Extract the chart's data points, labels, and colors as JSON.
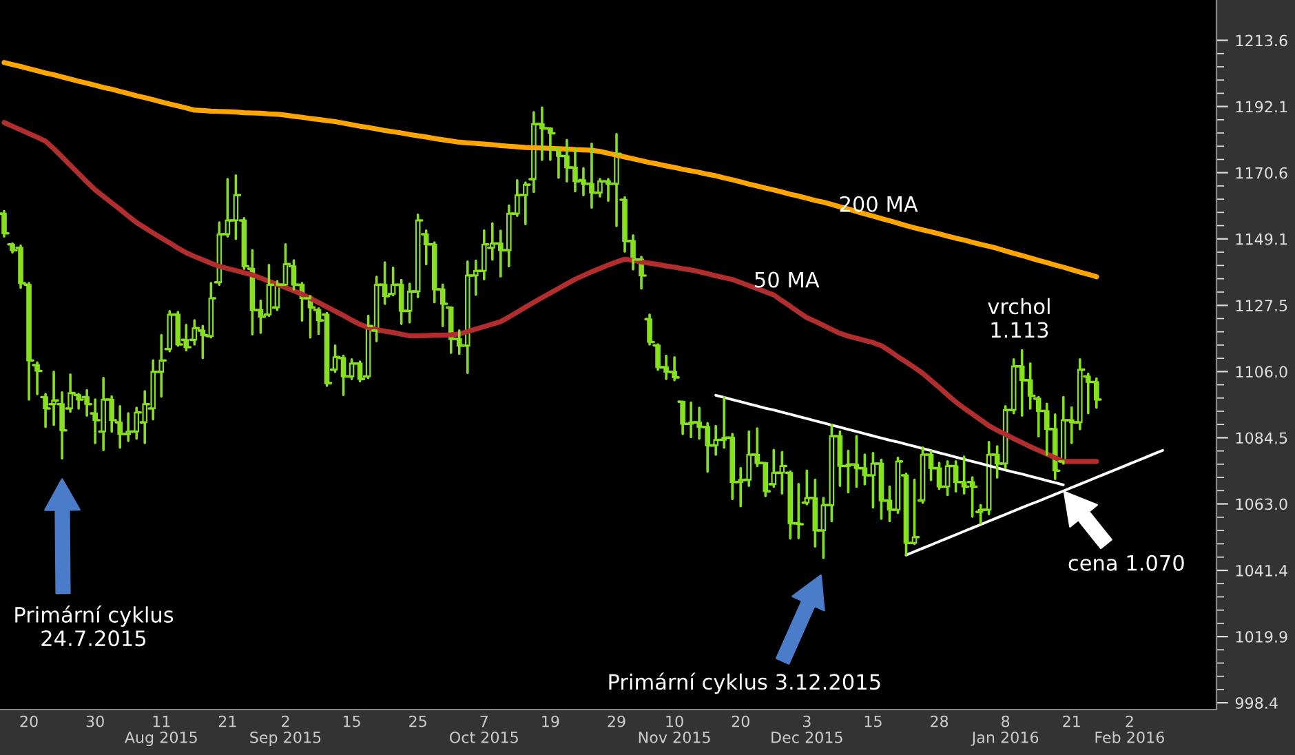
{
  "chart_data": {
    "type": "candlestick",
    "color": "#86e01e",
    "categories": [
      null,
      null,
      null,
      "20",
      null,
      null,
      null,
      null,
      null,
      null,
      null,
      "30",
      null,
      null,
      null,
      null,
      null,
      null,
      null,
      "11\nAug 2015",
      null,
      null,
      null,
      null,
      null,
      null,
      null,
      "21",
      null,
      null,
      null,
      null,
      null,
      null,
      "2\nSep 2015",
      null,
      null,
      null,
      null,
      null,
      null,
      null,
      "15",
      null,
      null,
      null,
      null,
      null,
      null,
      null,
      "25",
      null,
      null,
      null,
      null,
      null,
      null,
      null,
      "7\nOct 2015",
      null,
      null,
      null,
      null,
      null,
      null,
      null,
      "19",
      null,
      null,
      null,
      null,
      null,
      null,
      null,
      "29",
      null,
      null,
      null,
      null,
      null,
      null,
      "10\nNov 2015",
      null,
      null,
      null,
      null,
      null,
      null,
      null,
      "20",
      null,
      null,
      null,
      null,
      null,
      null,
      null,
      "3\nDec 2015",
      null,
      null,
      null,
      null,
      null,
      null,
      null,
      "15",
      null,
      null,
      null,
      null,
      null,
      null,
      null,
      "28",
      null,
      null,
      null,
      null,
      null,
      null,
      null,
      "8\nJan 2016",
      null,
      null,
      null,
      null,
      null,
      null,
      null,
      "21",
      null,
      null,
      null,
      null,
      null,
      null,
      "2\nFeb 2016",
      null,
      null,
      null,
      null,
      null,
      null,
      null,
      null,
      null,
      null
    ],
    "ohlc": [
      [
        1157.3,
        1158.1,
        1149.9,
        1150.9
      ],
      [
        1147.3,
        1147.6,
        1144.7,
        1145.4
      ],
      [
        1146.2,
        1146.9,
        1133.2,
        1134.7
      ],
      [
        1134.2,
        1134.7,
        1096.9,
        1109.6
      ],
      [
        1108.1,
        1108.9,
        1098.7,
        1106.2
      ],
      [
        1097.7,
        1098.7,
        1088.0,
        1094.0
      ],
      [
        1095.4,
        1105.9,
        1088.7,
        1096.6
      ],
      [
        1095.4,
        1099.2,
        1077.8,
        1086.9
      ],
      [
        1094.0,
        1105.0,
        1093.0,
        1099.0
      ],
      [
        1098.4,
        1098.7,
        1094.0,
        1096.9
      ],
      [
        1097.7,
        1099.9,
        1091.7,
        1095.4
      ],
      [
        1092.4,
        1096.9,
        1082.8,
        1090.2
      ],
      [
        1086.5,
        1103.9,
        1080.5,
        1096.9
      ],
      [
        1096.9,
        1097.9,
        1086.5,
        1090.2
      ],
      [
        1089.5,
        1094.7,
        1081.3,
        1085.7
      ],
      [
        1085.7,
        1092.4,
        1083.5,
        1086.5
      ],
      [
        1086.5,
        1094.2,
        1084.2,
        1092.7
      ],
      [
        1089.5,
        1099.6,
        1082.8,
        1095.4
      ],
      [
        1094.0,
        1109.6,
        1090.5,
        1105.9
      ],
      [
        1105.9,
        1117.8,
        1097.9,
        1109.6
      ],
      [
        1113.3,
        1125.6,
        1112.6,
        1124.5
      ],
      [
        1124.5,
        1125.3,
        1114.4,
        1114.8
      ],
      [
        1116.3,
        1121.1,
        1112.9,
        1113.9
      ],
      [
        1116.3,
        1122.6,
        1114.8,
        1120.1
      ],
      [
        1119.3,
        1120.8,
        1110.4,
        1117.8
      ],
      [
        1117.5,
        1134.7,
        1117.1,
        1129.8
      ],
      [
        1135.0,
        1154.4,
        1134.2,
        1150.6
      ],
      [
        1150.6,
        1168.5,
        1149.9,
        1155.1
      ],
      [
        1155.1,
        1169.7,
        1149.1,
        1163.3
      ],
      [
        1155.1,
        1155.8,
        1139.4,
        1140.2
      ],
      [
        1139.4,
        1145.4,
        1118.1,
        1126.0
      ],
      [
        1126.0,
        1129.0,
        1118.6,
        1123.8
      ],
      [
        1124.5,
        1140.6,
        1124.1,
        1134.2
      ],
      [
        1126.8,
        1135.3,
        1126.0,
        1134.2
      ],
      [
        1134.2,
        1147.3,
        1134.2,
        1140.9
      ],
      [
        1140.2,
        1142.1,
        1132.7,
        1134.2
      ],
      [
        1134.2,
        1134.7,
        1122.6,
        1129.8
      ],
      [
        1129.8,
        1130.5,
        1117.1,
        1126.8
      ],
      [
        1126.0,
        1126.5,
        1118.3,
        1122.6
      ],
      [
        1124.5,
        1125.0,
        1101.4,
        1102.2
      ],
      [
        1106.6,
        1114.4,
        1105.9,
        1110.7
      ],
      [
        1110.4,
        1111.1,
        1098.4,
        1104.4
      ],
      [
        1104.4,
        1109.9,
        1103.6,
        1108.6
      ],
      [
        1108.6,
        1109.2,
        1102.9,
        1103.6
      ],
      [
        1104.4,
        1124.1,
        1103.9,
        1120.8
      ],
      [
        1119.3,
        1136.8,
        1115.9,
        1134.2
      ],
      [
        1134.2,
        1141.4,
        1128.0,
        1130.5
      ],
      [
        1131.2,
        1139.7,
        1130.8,
        1134.2
      ],
      [
        1134.2,
        1135.7,
        1121.5,
        1125.7
      ],
      [
        1125.7,
        1134.5,
        1122.0,
        1132.0
      ],
      [
        1132.0,
        1156.9,
        1130.2,
        1155.1
      ],
      [
        1150.6,
        1151.8,
        1140.9,
        1147.3
      ],
      [
        1147.3,
        1147.9,
        1128.5,
        1132.7
      ],
      [
        1132.7,
        1134.2,
        1120.8,
        1128.0
      ],
      [
        1126.8,
        1126.8,
        1112.1,
        1116.6
      ],
      [
        1116.6,
        1119.3,
        1111.8,
        1114.4
      ],
      [
        1114.4,
        1141.7,
        1105.6,
        1137.2
      ],
      [
        1137.2,
        1142.0,
        1131.0,
        1138.7
      ],
      [
        1138.7,
        1151.8,
        1136.0,
        1147.3
      ],
      [
        1146.2,
        1154.1,
        1142.4,
        1147.6
      ],
      [
        1147.6,
        1151.7,
        1136.9,
        1145.4
      ],
      [
        1145.4,
        1159.9,
        1140.2,
        1157.3
      ],
      [
        1157.3,
        1168.1,
        1156.6,
        1163.3
      ],
      [
        1163.3,
        1167.4,
        1153.9,
        1166.7
      ],
      [
        1168.5,
        1190.2,
        1164.4,
        1186.4
      ],
      [
        1186.4,
        1191.7,
        1174.8,
        1185.0
      ],
      [
        1185.0,
        1185.0,
        1174.8,
        1183.4
      ],
      [
        1178.2,
        1178.5,
        1169.0,
        1176.0
      ],
      [
        1176.0,
        1181.2,
        1167.8,
        1172.3
      ],
      [
        1172.3,
        1178.5,
        1164.6,
        1167.8
      ],
      [
        1168.2,
        1172.0,
        1163.3,
        1167.0
      ],
      [
        1167.0,
        1180.0,
        1159.3,
        1164.1
      ],
      [
        1164.1,
        1168.5,
        1162.9,
        1167.8
      ],
      [
        1167.8,
        1168.5,
        1161.5,
        1167.0
      ],
      [
        1167.0,
        1183.1,
        1153.3,
        1176.7
      ],
      [
        1161.8,
        1162.6,
        1145.0,
        1148.4
      ],
      [
        1148.4,
        1150.2,
        1139.2,
        1142.4
      ],
      [
        1142.4,
        1143.2,
        1133.0,
        1137.2
      ],
      [
        1123.0,
        1124.5,
        1114.8,
        1115.6
      ],
      [
        1114.5,
        1114.8,
        1106.6,
        1107.4
      ],
      [
        1107.4,
        1111.1,
        1103.6,
        1105.9
      ],
      [
        1105.9,
        1110.6,
        1103.2,
        1104.1
      ],
      [
        1096.2,
        1096.2,
        1085.7,
        1089.0
      ],
      [
        1089.0,
        1095.9,
        1084.7,
        1089.5
      ],
      [
        1089.5,
        1094.2,
        1084.2,
        1088.0
      ],
      [
        1088.0,
        1089.2,
        1073.5,
        1082.0
      ],
      [
        1082.0,
        1088.3,
        1079.0,
        1083.8
      ],
      [
        1083.8,
        1097.7,
        1081.3,
        1084.5
      ],
      [
        1084.5,
        1085.7,
        1064.6,
        1070.1
      ],
      [
        1070.1,
        1074.6,
        1062.3,
        1070.8
      ],
      [
        1070.8,
        1086.5,
        1068.9,
        1079.0
      ],
      [
        1079.0,
        1087.5,
        1075.3,
        1076.3
      ],
      [
        1076.3,
        1076.3,
        1065.6,
        1067.1
      ],
      [
        1069.4,
        1080.5,
        1068.6,
        1073.1
      ],
      [
        1073.1,
        1079.8,
        1066.4,
        1075.3
      ],
      [
        1073.1,
        1073.5,
        1051.8,
        1056.7
      ],
      [
        1056.7,
        1069.4,
        1051.9,
        1056.4
      ],
      [
        1063.4,
        1073.8,
        1062.9,
        1064.9
      ],
      [
        1064.9,
        1070.8,
        1049.2,
        1054.4
      ],
      [
        1054.4,
        1064.9,
        1045.5,
        1062.6
      ],
      [
        1062.6,
        1088.7,
        1057.4,
        1085.0
      ],
      [
        1085.0,
        1086.5,
        1068.9,
        1075.3
      ],
      [
        1075.3,
        1080.2,
        1066.8,
        1075.8
      ],
      [
        1075.8,
        1085.0,
        1068.6,
        1074.6
      ],
      [
        1074.6,
        1079.0,
        1069.4,
        1072.3
      ],
      [
        1072.3,
        1079.5,
        1061.9,
        1076.1
      ],
      [
        1076.1,
        1077.3,
        1058.2,
        1064.1
      ],
      [
        1064.1,
        1068.6,
        1057.4,
        1061.1
      ],
      [
        1061.1,
        1078.0,
        1060.1,
        1076.8
      ],
      [
        1072.3,
        1072.8,
        1046.5,
        1050.3
      ],
      [
        1050.3,
        1070.8,
        1050.0,
        1052.2
      ],
      [
        1064.1,
        1081.3,
        1063.4,
        1079.0
      ],
      [
        1079.0,
        1080.1,
        1070.8,
        1074.6
      ],
      [
        1074.6,
        1076.3,
        1067.9,
        1068.6
      ],
      [
        1068.6,
        1076.8,
        1065.9,
        1075.3
      ],
      [
        1075.3,
        1076.8,
        1067.1,
        1070.1
      ],
      [
        1070.1,
        1078.3,
        1066.4,
        1068.6
      ],
      [
        1070.1,
        1071.6,
        1058.9,
        1068.6
      ],
      [
        1060.4,
        1062.6,
        1056.7,
        1061.1
      ],
      [
        1061.1,
        1083.1,
        1059.7,
        1079.0
      ],
      [
        1079.0,
        1081.7,
        1071.6,
        1076.1
      ],
      [
        1076.1,
        1094.7,
        1074.6,
        1093.5
      ],
      [
        1093.5,
        1109.9,
        1092.5,
        1107.7
      ],
      [
        1107.7,
        1112.9,
        1091.7,
        1103.2
      ],
      [
        1103.2,
        1108.6,
        1094.0,
        1098.1
      ],
      [
        1097.2,
        1097.7,
        1085.0,
        1093.2
      ],
      [
        1093.2,
        1095.5,
        1079.0,
        1087.3
      ],
      [
        1087.3,
        1092.0,
        1071.1,
        1073.8
      ],
      [
        1076.8,
        1097.7,
        1076.1,
        1090.2
      ],
      [
        1090.2,
        1094.3,
        1082.8,
        1089.5
      ],
      [
        1089.5,
        1109.9,
        1087.3,
        1106.6
      ],
      [
        1104.4,
        1105.2,
        1092.5,
        1102.6
      ],
      [
        1102.6,
        1103.7,
        1094.3,
        1096.9
      ],
      null,
      null,
      null,
      null,
      null,
      null,
      null,
      null,
      null,
      null,
      null,
      null,
      null,
      null
    ],
    "series": [
      {
        "name": "200 MA",
        "type": "line",
        "color": "#ffa500",
        "values": [
          1206.4,
          1205.7,
          1205.1,
          1204.4,
          1203.7,
          1203.0,
          1202.4,
          1201.7,
          1201.0,
          1200.3,
          1199.7,
          1199.0,
          1198.3,
          1197.7,
          1197.0,
          1196.3,
          1195.6,
          1195.0,
          1194.3,
          1193.6,
          1192.9,
          1192.3,
          1191.6,
          1190.9,
          1190.8,
          1190.6,
          1190.5,
          1190.4,
          1190.3,
          1190.1,
          1190.0,
          1189.9,
          1189.7,
          1189.6,
          1189.3,
          1188.9,
          1188.6,
          1188.2,
          1187.9,
          1187.5,
          1187.2,
          1186.7,
          1186.2,
          1185.7,
          1185.3,
          1184.8,
          1184.3,
          1183.9,
          1183.5,
          1183.0,
          1182.6,
          1182.2,
          1181.7,
          1181.3,
          1180.9,
          1180.5,
          1180.3,
          1180.1,
          1179.9,
          1179.7,
          1179.4,
          1179.2,
          1179.0,
          1178.8,
          1178.7,
          1178.6,
          1178.5,
          1178.4,
          1178.3,
          1178.1,
          1178.0,
          1177.9,
          1177.5,
          1176.9,
          1176.3,
          1175.7,
          1175.1,
          1174.5,
          1173.9,
          1173.4,
          1172.8,
          1172.3,
          1171.7,
          1171.2,
          1170.7,
          1170.1,
          1169.6,
          1168.9,
          1168.3,
          1167.6,
          1166.9,
          1166.3,
          1165.6,
          1165.0,
          1164.3,
          1163.6,
          1163.0,
          1162.3,
          1161.6,
          1161.0,
          1160.3,
          1159.5,
          1158.8,
          1158.0,
          1157.2,
          1156.5,
          1155.7,
          1155.0,
          1154.2,
          1153.4,
          1152.7,
          1152.0,
          1151.4,
          1150.7,
          1150.0,
          1149.3,
          1148.7,
          1148.0,
          1147.3,
          1146.7,
          1146.0,
          1145.2,
          1144.4,
          1143.7,
          1142.9,
          1142.1,
          1141.4,
          1140.6,
          1139.9,
          1139.1,
          1138.3,
          1137.6,
          1136.8,
          null,
          null,
          null,
          null,
          null,
          null,
          null,
          null,
          null,
          null,
          null,
          null,
          null,
          null
        ]
      },
      {
        "name": "50 MA",
        "type": "line",
        "color": "#b22d2d",
        "values": [
          1186.9,
          1185.7,
          1184.5,
          1183.3,
          1182.1,
          1180.8,
          1178.4,
          1175.7,
          1173.0,
          1170.3,
          1167.6,
          1165.0,
          1162.9,
          1160.8,
          1158.7,
          1156.5,
          1154.4,
          1152.7,
          1151.0,
          1149.4,
          1147.8,
          1146.1,
          1144.6,
          1143.4,
          1142.3,
          1141.2,
          1140.2,
          1139.5,
          1138.8,
          1138.1,
          1137.4,
          1136.4,
          1135.3,
          1134.3,
          1133.3,
          1132.2,
          1131.1,
          1129.8,
          1128.4,
          1127.0,
          1125.6,
          1124.2,
          1122.7,
          1121.3,
          1120.3,
          1119.6,
          1119.1,
          1118.7,
          1118.1,
          1117.6,
          1117.6,
          1117.7,
          1117.8,
          1117.8,
          1117.9,
          1118.2,
          1119.0,
          1119.8,
          1120.6,
          1121.4,
          1122.2,
          1123.7,
          1125.3,
          1126.9,
          1128.5,
          1130.0,
          1131.5,
          1133.0,
          1134.5,
          1136.0,
          1137.2,
          1138.4,
          1139.5,
          1140.6,
          1141.6,
          1142.5,
          1142.1,
          1141.6,
          1141.2,
          1140.8,
          1140.3,
          1139.9,
          1139.4,
          1139.0,
          1138.4,
          1137.8,
          1137.1,
          1136.5,
          1135.9,
          1134.9,
          1133.9,
          1132.9,
          1131.9,
          1130.9,
          1129.0,
          1127.2,
          1125.3,
          1123.5,
          1122.3,
          1121.0,
          1119.7,
          1118.4,
          1117.5,
          1116.8,
          1116.1,
          1115.4,
          1114.4,
          1112.7,
          1110.8,
          1109.1,
          1107.3,
          1105.4,
          1103.1,
          1100.8,
          1098.4,
          1096.1,
          1094.1,
          1092.2,
          1090.3,
          1088.4,
          1086.9,
          1085.6,
          1084.2,
          1082.9,
          1081.6,
          1080.4,
          1079.2,
          1078.0,
          1076.8,
          1076.8,
          1076.8,
          1076.8,
          1076.8,
          null,
          null,
          null,
          null,
          null,
          null,
          null,
          null,
          null,
          null,
          null,
          null,
          null,
          null
        ]
      },
      {
        "type": "line",
        "color": "#ffffff",
        "values": [
          null,
          null,
          null,
          null,
          null,
          null,
          null,
          null,
          null,
          null,
          null,
          null,
          null,
          null,
          null,
          null,
          null,
          null,
          null,
          null,
          null,
          null,
          null,
          null,
          null,
          null,
          null,
          null,
          null,
          null,
          null,
          null,
          null,
          null,
          null,
          null,
          null,
          null,
          null,
          null,
          null,
          null,
          null,
          null,
          null,
          null,
          null,
          null,
          null,
          null,
          null,
          null,
          null,
          null,
          null,
          null,
          null,
          null,
          null,
          null,
          null,
          null,
          null,
          null,
          null,
          null,
          null,
          null,
          null,
          null,
          null,
          null,
          null,
          null,
          null,
          null,
          null,
          null,
          null,
          null,
          null,
          null,
          null,
          null,
          null,
          null,
          1098.3,
          1097.6,
          1096.9,
          1096.2,
          1095.5,
          1094.8,
          1094.1,
          1093.5,
          1092.8,
          1092.1,
          1091.4,
          1090.7,
          1090.0,
          1089.3,
          1088.6,
          1087.9,
          1087.2,
          1086.5,
          1085.8,
          1085.1,
          1084.4,
          1083.7,
          1083.1,
          1082.4,
          1081.7,
          1081.0,
          1080.3,
          1079.6,
          1078.9,
          1078.2,
          1077.5,
          1076.8,
          1076.1,
          1075.4,
          1074.7,
          1074.0,
          1073.3,
          1072.7,
          1072.0,
          1071.3,
          1070.6,
          1069.9,
          1069.2,
          null,
          null,
          null,
          null,
          null,
          null,
          null,
          null,
          null,
          null,
          null,
          null,
          null,
          null,
          null,
          null,
          null,
          null
        ]
      },
      {
        "type": "line",
        "color": "#ffffff",
        "values": [
          null,
          null,
          null,
          null,
          null,
          null,
          null,
          null,
          null,
          null,
          null,
          null,
          null,
          null,
          null,
          null,
          null,
          null,
          null,
          null,
          null,
          null,
          null,
          null,
          null,
          null,
          null,
          null,
          null,
          null,
          null,
          null,
          null,
          null,
          null,
          null,
          null,
          null,
          null,
          null,
          null,
          null,
          null,
          null,
          null,
          null,
          null,
          null,
          null,
          null,
          null,
          null,
          null,
          null,
          null,
          null,
          null,
          null,
          null,
          null,
          null,
          null,
          null,
          null,
          null,
          null,
          null,
          null,
          null,
          null,
          null,
          null,
          null,
          null,
          null,
          null,
          null,
          null,
          null,
          null,
          null,
          null,
          null,
          null,
          null,
          null,
          null,
          null,
          null,
          null,
          null,
          null,
          null,
          null,
          null,
          null,
          null,
          null,
          null,
          null,
          null,
          null,
          null,
          null,
          null,
          null,
          null,
          null,
          null,
          1046.4,
          1047.5,
          1048.6,
          1049.7,
          1050.8,
          1051.9,
          1053.0,
          1054.1,
          1055.2,
          1056.3,
          1057.4,
          1058.5,
          1059.6,
          1060.7,
          1061.8,
          1062.9,
          1063.9,
          1065.0,
          1066.1,
          1067.2,
          1068.3,
          1069.4,
          1070.5,
          1071.6,
          1072.7,
          1073.8,
          1074.9,
          1076.0,
          1077.1,
          1078.2,
          1079.3,
          1080.4,
          null,
          null,
          null,
          null,
          null,
          null
        ]
      }
    ],
    "annotations": [
      "Primární cyklus\n24.7.2015",
      "Primární cyklus 3.12.2015",
      "vrchol\n1.113",
      "cena 1.070"
    ],
    "ylim": [
      996.2,
      1226.7
    ],
    "yticks": [
      998.4,
      1019.9,
      1041.4,
      {
        "value": 1063.0,
        "label": "1063.0"
      },
      1084.5,
      {
        "value": 1106.0,
        "label": "1106.0"
      },
      1127.5,
      1149.1,
      1170.6,
      1192.1,
      1213.6
    ]
  }
}
